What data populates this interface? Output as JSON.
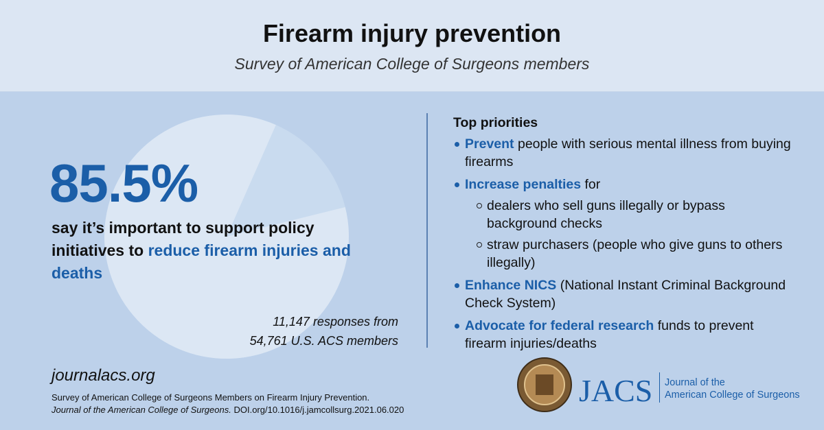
{
  "header": {
    "title": "Firearm injury prevention",
    "subtitle": "Survey of American College of Surgeons members"
  },
  "chart_data": {
    "type": "pie",
    "values": [
      85.5
    ],
    "value_labels": [
      "85.5%"
    ],
    "colors": [
      "#dce7f4"
    ]
  },
  "statement": [
    "say it’s important to support policy initiatives to",
    "reduce firearm injuries and deaths"
  ],
  "sample": [
    "11,147 responses from",
    "54,761 U.S. ACS members"
  ],
  "priorities": {
    "heading": "Top priorities",
    "items": [
      {
        "lead": "Prevent",
        "text": "people with serious mental illness from buying firearms"
      },
      {
        "lead": "Increase penalties",
        "text": "for",
        "subitems": [
          "dealers who sell guns illegally or bypass background checks",
          "straw purchasers (people who give guns to others illegally)"
        ]
      },
      {
        "lead": "Enhance NICS",
        "text": "(National Instant Criminal Background Check System)"
      },
      {
        "lead": "Advocate for federal research",
        "text": "funds to prevent firearm injuries/deaths"
      }
    ]
  },
  "footer": {
    "url": "journalacs.org",
    "citation": "Survey of American College of Surgeons Members on Firearm Injury Prevention.",
    "journal": "Journal of the American College of Surgeons.",
    "doi": "DOI.org/10.1016/j.jamcollsurg.2021.06.020"
  },
  "logo": {
    "abbr": "JACS",
    "name": [
      "Journal of the",
      "American College of Surgeons"
    ]
  }
}
